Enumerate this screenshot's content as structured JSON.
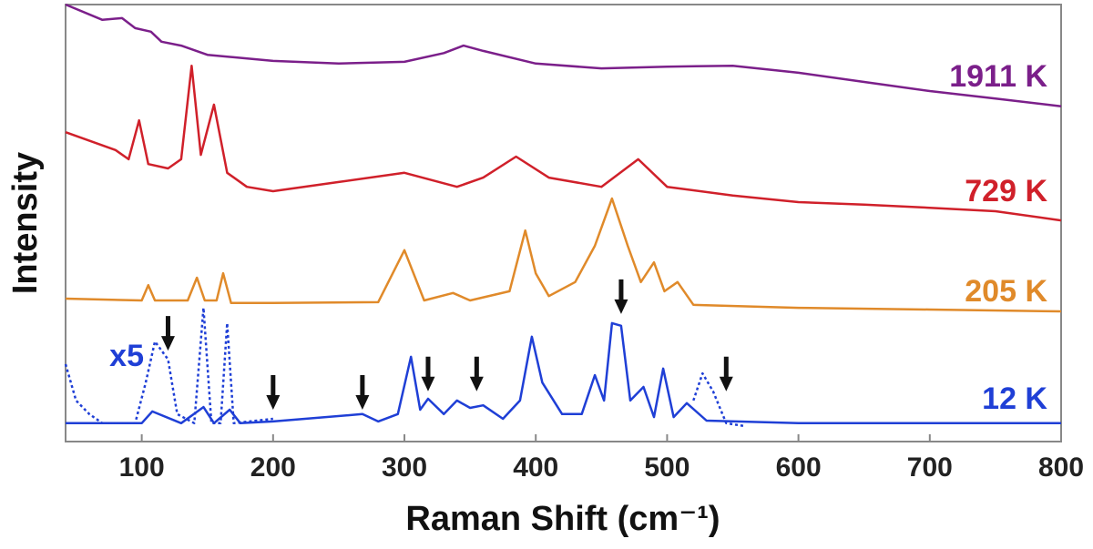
{
  "chart_data": {
    "type": "line",
    "x_label": "Raman Shift (cm⁻¹)",
    "y_label": "Intensity",
    "xlim": [
      42,
      800
    ],
    "ylim": [
      0,
      100
    ],
    "xticks": [
      100,
      200,
      300,
      400,
      500,
      600,
      700,
      800
    ],
    "series": [
      {
        "name": "1911 K",
        "color": "#7b1f8a",
        "style": "solid",
        "x": [
          42,
          70,
          85,
          95,
          107,
          115,
          130,
          150,
          200,
          250,
          300,
          330,
          345,
          360,
          400,
          450,
          500,
          550,
          600,
          650,
          700,
          750,
          800
        ],
        "values": [
          100,
          96.5,
          96.9,
          94.6,
          93.8,
          91.5,
          90.6,
          88.5,
          87.1,
          86.5,
          86.9,
          88.9,
          90.6,
          89.4,
          86.5,
          85.4,
          85.8,
          86,
          84.4,
          82.3,
          80.2,
          78.5,
          76.7
        ]
      },
      {
        "name": "729 K",
        "color": "#d0202a",
        "style": "solid",
        "x": [
          42,
          80,
          90,
          98,
          105,
          120,
          130,
          138,
          145,
          155,
          165,
          180,
          200,
          250,
          300,
          340,
          360,
          385,
          410,
          450,
          478,
          500,
          550,
          600,
          650,
          700,
          750,
          800
        ],
        "values": [
          70.8,
          66.7,
          64.6,
          73.5,
          63.5,
          62.5,
          64.6,
          86,
          65.6,
          77.1,
          61.5,
          58.3,
          57.3,
          59.4,
          61.5,
          58.3,
          60.4,
          65.2,
          60.4,
          58.3,
          64.6,
          58.3,
          56.3,
          54.8,
          54.2,
          53.5,
          52.7,
          50.6
        ]
      },
      {
        "name": "205 K",
        "color": "#e08a2a",
        "style": "solid",
        "x": [
          42,
          100,
          105,
          110,
          135,
          142,
          148,
          157,
          162,
          168,
          200,
          280,
          300,
          315,
          337,
          350,
          380,
          392,
          400,
          410,
          430,
          445,
          458,
          470,
          480,
          490,
          498,
          508,
          520,
          600,
          700,
          800
        ],
        "values": [
          32.7,
          32.3,
          35.8,
          32.3,
          32.3,
          37.5,
          32.3,
          32.3,
          38.5,
          31.7,
          31.7,
          31.9,
          43.8,
          32.3,
          34,
          32.3,
          34.4,
          48.3,
          38.5,
          33.3,
          36.5,
          44.8,
          55.6,
          44.8,
          36.5,
          41,
          34.4,
          36.5,
          31.3,
          30.6,
          30.2,
          29.8
        ]
      },
      {
        "name": "12 K",
        "color": "#1f3fd6",
        "style": "solid",
        "x": [
          42,
          100,
          108,
          130,
          147,
          155,
          167,
          175,
          200,
          268,
          280,
          295,
          305,
          312,
          318,
          330,
          340,
          350,
          360,
          375,
          388,
          397,
          405,
          420,
          435,
          445,
          452,
          458,
          465,
          472,
          482,
          490,
          497,
          505,
          515,
          530,
          600,
          800
        ],
        "values": [
          4.2,
          4.2,
          6.9,
          4.2,
          7.9,
          4.2,
          7.3,
          4.2,
          4.6,
          6.3,
          4.6,
          6.3,
          19.4,
          7.3,
          9.8,
          6.3,
          9.4,
          7.7,
          8.3,
          5.2,
          9.4,
          24,
          13.5,
          6.3,
          6.3,
          15.2,
          9.4,
          27.1,
          26.5,
          9.4,
          12.5,
          5.6,
          16.7,
          5.6,
          8.8,
          4.8,
          4.2,
          4.2
        ]
      },
      {
        "name": "x5",
        "color": "#1f3fd6",
        "style": "dotted",
        "x": [
          42,
          50,
          60,
          70,
          95,
          103,
          110,
          120,
          127,
          140,
          147,
          153,
          160,
          165,
          170,
          200,
          300,
          520,
          527,
          535,
          545,
          560
        ],
        "values": [
          17.7,
          9.4,
          6.3,
          4.2,
          4.2,
          13.5,
          22.9,
          18.8,
          6.3,
          4.2,
          30.6,
          4.2,
          4.2,
          27.1,
          4.2,
          5.2,
          null,
          9.4,
          15.6,
          11.5,
          4.2,
          3.5
        ]
      }
    ],
    "arrows": [
      {
        "x": 120,
        "y": 20.8
      },
      {
        "x": 200,
        "y": 7.3
      },
      {
        "x": 268,
        "y": 7.3
      },
      {
        "x": 318,
        "y": 11.5
      },
      {
        "x": 355,
        "y": 11.5
      },
      {
        "x": 465,
        "y": 29.2
      },
      {
        "x": 545,
        "y": 11.5
      }
    ]
  }
}
